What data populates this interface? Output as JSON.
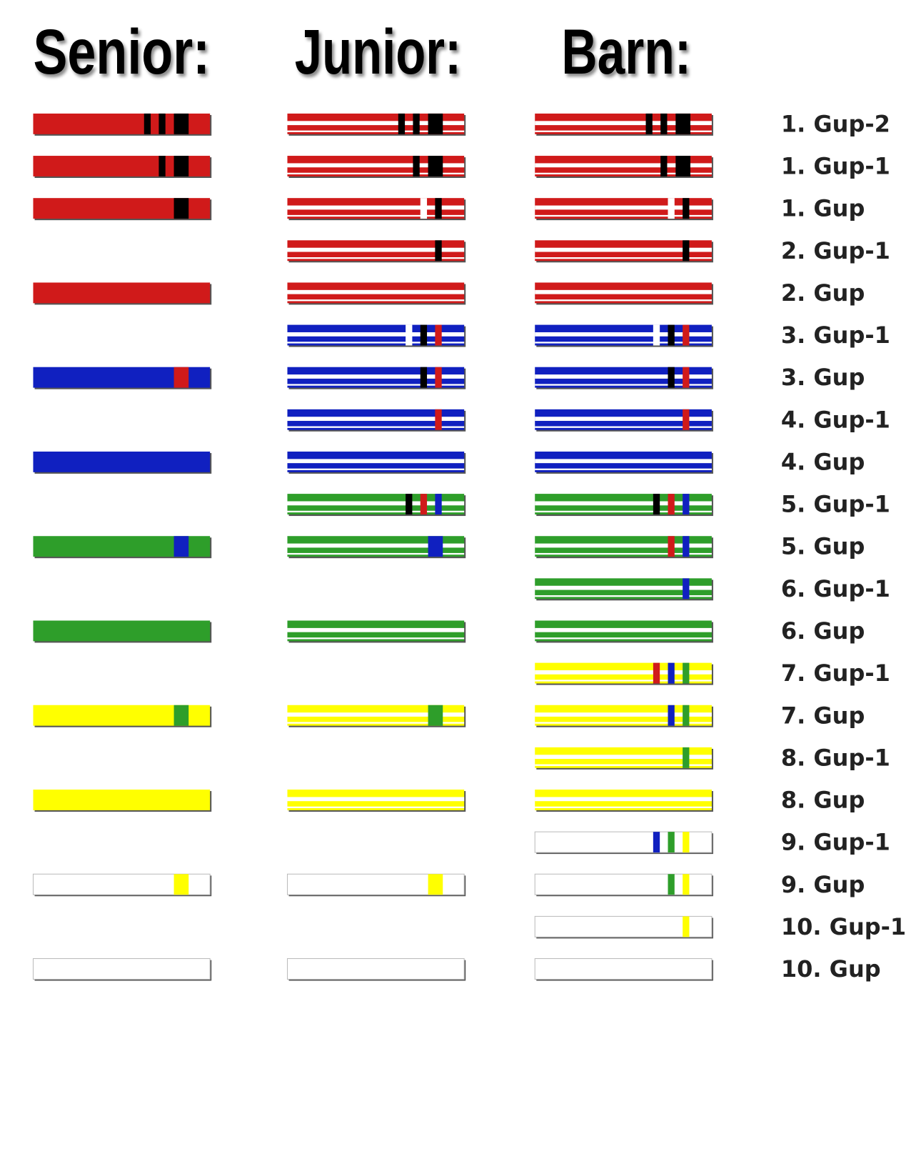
{
  "headers": [
    "Senior:",
    "Junior:",
    "Barn:"
  ],
  "ranks": [
    "1. Gup-2",
    "1. Gup-1",
    "1. Gup",
    "2. Gup-1",
    "2. Gup",
    "3. Gup-1",
    "3. Gup",
    "4. Gup-1",
    "4. Gup",
    "5. Gup-1",
    "5. Gup",
    "6. Gup-1",
    "6. Gup",
    "7. Gup-1",
    "7. Gup",
    "8. Gup-1",
    "8. Gup",
    "9. Gup-1",
    "9. Gup",
    "10. Gup-1",
    "10. Gup"
  ]
}
